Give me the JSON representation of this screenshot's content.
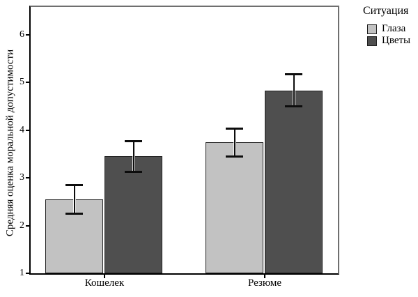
{
  "figure": {
    "background": "#ffffff"
  },
  "chart_data": {
    "type": "bar",
    "title": "",
    "categories": [
      "Кошелек",
      "Резюме"
    ],
    "series": [
      {
        "name": "Глаза",
        "color": "#c2c2c2",
        "values": [
          2.55,
          3.74
        ],
        "errors": [
          0.31,
          0.3
        ]
      },
      {
        "name": "Цветы",
        "color": "#4f4f4f",
        "values": [
          3.45,
          4.83
        ],
        "errors": [
          0.33,
          0.34
        ]
      }
    ],
    "ylabel": "Средняя оценка моральной допустимости",
    "xlabel": "",
    "ylim": [
      1,
      6.6
    ],
    "yticks": [
      "1",
      "2",
      "3",
      "4",
      "5",
      "6"
    ],
    "legend_title": "Ситуация",
    "legend_position": "top-right",
    "grid": false,
    "error_bars": true
  },
  "colors": {
    "axis": "#000000",
    "frame": "#6f6f6f",
    "bar_border": "#1f1f1f",
    "error_bar": "#0d0d0d",
    "text": "#000000"
  }
}
